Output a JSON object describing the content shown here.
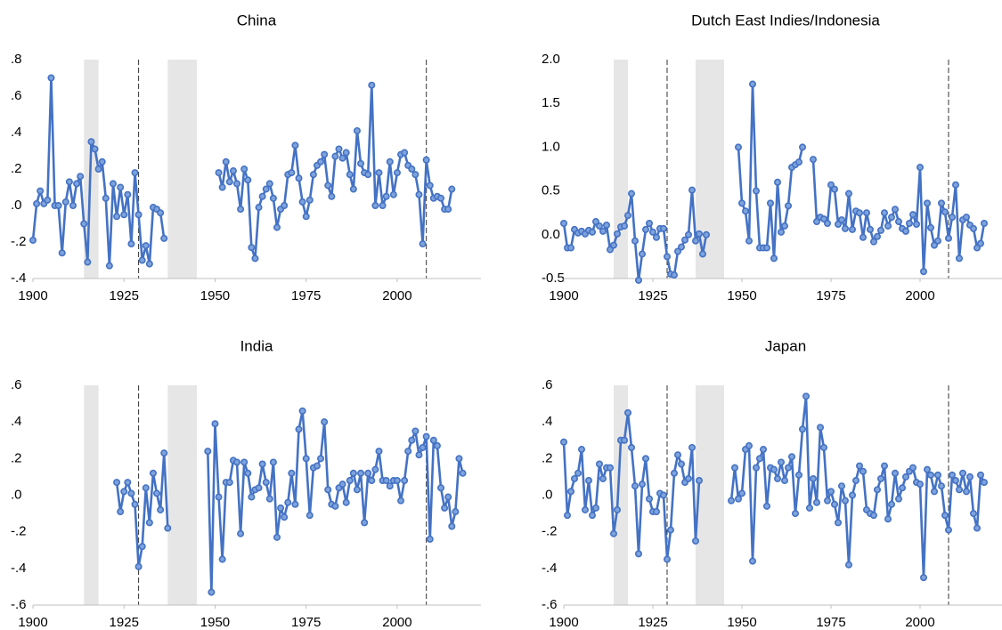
{
  "chart_data": [
    {
      "type": "line",
      "title": "China",
      "color": "#4472c4",
      "x": [
        1900,
        1901,
        1902,
        1903,
        1904,
        1905,
        1906,
        1907,
        1908,
        1909,
        1910,
        1911,
        1912,
        1913,
        1914,
        1915,
        1916,
        1917,
        1918,
        1919,
        1920,
        1921,
        1922,
        1923,
        1924,
        1925,
        1926,
        1927,
        1928,
        1929,
        1930,
        1931,
        1932,
        1933,
        1934,
        1935,
        1936,
        1937,
        1938,
        1939,
        1940,
        1941,
        1942,
        1943,
        1944,
        1945,
        1946,
        1947,
        1948,
        1949,
        1950,
        1951,
        1952,
        1953,
        1954,
        1955,
        1956,
        1957,
        1958,
        1959,
        1960,
        1961,
        1962,
        1963,
        1964,
        1965,
        1966,
        1967,
        1968,
        1969,
        1970,
        1971,
        1972,
        1973,
        1974,
        1975,
        1976,
        1977,
        1978,
        1979,
        1980,
        1981,
        1982,
        1983,
        1984,
        1985,
        1986,
        1987,
        1988,
        1989,
        1990,
        1991,
        1992,
        1993,
        1994,
        1995,
        1996,
        1997,
        1998,
        1999,
        2000,
        2001,
        2002,
        2003,
        2004,
        2005,
        2006,
        2007,
        2008,
        2009,
        2010,
        2011,
        2012,
        2013,
        2014,
        2015,
        2016,
        2017,
        2018
      ],
      "values": [
        -0.19,
        0.01,
        0.08,
        0.01,
        0.03,
        0.7,
        0.0,
        0.0,
        -0.26,
        0.02,
        0.13,
        0.0,
        0.12,
        0.16,
        -0.1,
        -0.31,
        0.35,
        0.31,
        0.2,
        0.24,
        0.04,
        -0.33,
        0.12,
        -0.06,
        0.1,
        -0.05,
        0.06,
        -0.21,
        0.18,
        -0.05,
        -0.3,
        -0.22,
        -0.32,
        -0.01,
        -0.02,
        -0.04,
        -0.18,
        null,
        null,
        null,
        null,
        null,
        null,
        null,
        null,
        null,
        null,
        null,
        null,
        null,
        null,
        0.18,
        0.1,
        0.24,
        0.13,
        0.19,
        0.12,
        -0.02,
        0.2,
        0.14,
        -0.23,
        -0.29,
        -0.01,
        0.05,
        0.09,
        0.12,
        0.04,
        -0.12,
        -0.02,
        0.0,
        0.17,
        0.18,
        0.33,
        0.15,
        0.02,
        -0.06,
        0.03,
        0.17,
        0.22,
        0.24,
        0.28,
        0.11,
        0.05,
        0.27,
        0.31,
        0.26,
        0.29,
        0.17,
        0.09,
        0.41,
        0.23,
        0.18,
        0.17,
        0.66,
        0.0,
        0.18,
        0.0,
        0.05,
        0.24,
        0.06,
        0.18,
        0.28,
        0.29,
        0.22,
        0.2,
        0.17,
        0.06,
        -0.21,
        0.25,
        0.11,
        0.04,
        0.05,
        0.04,
        -0.02,
        -0.02,
        0.09,
        null,
        null,
        null
      ],
      "xlim": [
        1900,
        2023
      ],
      "xticks": [
        1900,
        1925,
        1950,
        1975,
        2000
      ],
      "ylim": [
        -0.4,
        0.8
      ],
      "yticks": [
        {
          "value": 0.8,
          "label": ".8"
        },
        {
          "value": 0.6,
          "label": ".6"
        },
        {
          "value": 0.4,
          "label": ".4"
        },
        {
          "value": 0.2,
          "label": ".2"
        },
        {
          "value": 0,
          "label": ".0"
        },
        {
          "value": -0.2,
          "label": "-.2"
        },
        {
          "value": -0.4,
          "label": "-.4"
        }
      ],
      "shaded_periods": [
        [
          1914,
          1918
        ],
        [
          1937,
          1945
        ]
      ],
      "vlines": [
        1929,
        2008
      ]
    },
    {
      "type": "line",
      "title": "Dutch East Indies/Indonesia",
      "color": "#4472c4",
      "x": [
        1900,
        1901,
        1902,
        1903,
        1904,
        1905,
        1906,
        1907,
        1908,
        1909,
        1910,
        1911,
        1912,
        1913,
        1914,
        1915,
        1916,
        1917,
        1918,
        1919,
        1920,
        1921,
        1922,
        1923,
        1924,
        1925,
        1926,
        1927,
        1928,
        1929,
        1930,
        1931,
        1932,
        1933,
        1934,
        1935,
        1936,
        1937,
        1938,
        1939,
        1940,
        1941,
        1942,
        1943,
        1944,
        1945,
        1946,
        1947,
        1948,
        1949,
        1950,
        1951,
        1952,
        1953,
        1954,
        1955,
        1956,
        1957,
        1958,
        1959,
        1960,
        1961,
        1962,
        1963,
        1964,
        1965,
        1966,
        1967,
        1968,
        1969,
        1970,
        1971,
        1972,
        1973,
        1974,
        1975,
        1976,
        1977,
        1978,
        1979,
        1980,
        1981,
        1982,
        1983,
        1984,
        1985,
        1986,
        1987,
        1988,
        1989,
        1990,
        1991,
        1992,
        1993,
        1994,
        1995,
        1996,
        1997,
        1998,
        1999,
        2000,
        2001,
        2002,
        2003,
        2004,
        2005,
        2006,
        2007,
        2008,
        2009,
        2010,
        2011,
        2012,
        2013,
        2014,
        2015,
        2016,
        2017,
        2018
      ],
      "values": [
        0.13,
        -0.15,
        -0.15,
        0.06,
        0.02,
        0.04,
        0.01,
        0.05,
        0.03,
        0.15,
        0.1,
        0.04,
        0.11,
        -0.17,
        -0.12,
        0.01,
        0.09,
        0.1,
        0.22,
        0.47,
        -0.07,
        -0.52,
        -0.22,
        0.06,
        0.13,
        0.03,
        -0.03,
        0.07,
        0.07,
        -0.25,
        -0.45,
        -0.46,
        -0.19,
        -0.14,
        -0.06,
        0.0,
        0.51,
        -0.07,
        0.01,
        -0.22,
        0.0,
        null,
        null,
        null,
        null,
        null,
        null,
        null,
        null,
        1.0,
        0.36,
        0.27,
        -0.07,
        1.72,
        0.5,
        -0.15,
        -0.15,
        -0.15,
        0.36,
        -0.27,
        0.6,
        0.03,
        0.1,
        0.33,
        0.77,
        0.8,
        0.83,
        1.0,
        null,
        null,
        0.86,
        0.15,
        0.2,
        0.18,
        0.13,
        0.57,
        0.52,
        0.12,
        0.17,
        0.07,
        0.47,
        0.06,
        0.27,
        0.25,
        -0.03,
        0.25,
        0.06,
        -0.08,
        -0.02,
        0.05,
        0.25,
        0.1,
        0.2,
        0.29,
        0.15,
        0.07,
        0.04,
        0.13,
        0.23,
        0.12,
        0.77,
        -0.42,
        0.36,
        0.08,
        -0.12,
        -0.07,
        0.36,
        0.26,
        -0.04,
        0.2,
        0.57,
        -0.27,
        0.17,
        0.2,
        0.11,
        0.07,
        -0.15,
        -0.1,
        0.13
      ],
      "xlim": [
        1900,
        2023
      ],
      "xticks": [
        1900,
        1925,
        1950,
        1975,
        2000
      ],
      "ylim": [
        -0.5,
        2.0
      ],
      "yticks": [
        {
          "value": 2,
          "label": "2.0"
        },
        1.5,
        {
          "value": 1,
          "label": "1.0"
        },
        0.5,
        {
          "value": 0,
          "label": "0.0"
        },
        -0.5
      ],
      "shaded_periods": [
        [
          1914,
          1918
        ],
        [
          1937,
          1945
        ]
      ],
      "vlines": [
        1929,
        2008
      ]
    },
    {
      "type": "line",
      "title": "India",
      "color": "#4472c4",
      "x": [
        1900,
        1901,
        1902,
        1903,
        1904,
        1905,
        1906,
        1907,
        1908,
        1909,
        1910,
        1911,
        1912,
        1913,
        1914,
        1915,
        1916,
        1917,
        1918,
        1919,
        1920,
        1921,
        1922,
        1923,
        1924,
        1925,
        1926,
        1927,
        1928,
        1929,
        1930,
        1931,
        1932,
        1933,
        1934,
        1935,
        1936,
        1937,
        1938,
        1939,
        1940,
        1941,
        1942,
        1943,
        1944,
        1945,
        1946,
        1947,
        1948,
        1949,
        1950,
        1951,
        1952,
        1953,
        1954,
        1955,
        1956,
        1957,
        1958,
        1959,
        1960,
        1961,
        1962,
        1963,
        1964,
        1965,
        1966,
        1967,
        1968,
        1969,
        1970,
        1971,
        1972,
        1973,
        1974,
        1975,
        1976,
        1977,
        1978,
        1979,
        1980,
        1981,
        1982,
        1983,
        1984,
        1985,
        1986,
        1987,
        1988,
        1989,
        1990,
        1991,
        1992,
        1993,
        1994,
        1995,
        1996,
        1997,
        1998,
        1999,
        2000,
        2001,
        2002,
        2003,
        2004,
        2005,
        2006,
        2007,
        2008,
        2009,
        2010,
        2011,
        2012,
        2013,
        2014,
        2015,
        2016,
        2017,
        2018
      ],
      "values": [
        null,
        null,
        null,
        null,
        null,
        null,
        null,
        null,
        null,
        null,
        null,
        null,
        null,
        null,
        null,
        null,
        null,
        null,
        null,
        null,
        null,
        null,
        null,
        0.07,
        -0.09,
        0.02,
        0.07,
        0.01,
        -0.05,
        -0.39,
        -0.28,
        0.04,
        -0.15,
        0.12,
        0.01,
        -0.08,
        0.23,
        -0.18,
        null,
        null,
        null,
        null,
        null,
        null,
        null,
        null,
        null,
        null,
        0.24,
        -0.53,
        0.39,
        -0.01,
        -0.35,
        0.07,
        0.07,
        0.19,
        0.18,
        -0.21,
        0.18,
        0.12,
        -0.01,
        0.03,
        0.04,
        0.17,
        0.07,
        -0.02,
        0.18,
        -0.23,
        -0.07,
        -0.12,
        -0.04,
        0.12,
        -0.05,
        0.36,
        0.46,
        0.2,
        -0.11,
        0.15,
        0.16,
        0.2,
        0.4,
        0.03,
        -0.05,
        -0.06,
        0.04,
        0.06,
        -0.04,
        0.08,
        0.12,
        0.03,
        0.12,
        -0.15,
        0.12,
        0.08,
        0.14,
        0.24,
        0.08,
        0.08,
        0.05,
        0.08,
        0.08,
        -0.03,
        0.08,
        0.24,
        0.3,
        0.35,
        0.22,
        0.26,
        0.32,
        -0.24,
        0.3,
        0.27,
        0.04,
        -0.07,
        -0.01,
        -0.17,
        -0.09,
        0.2,
        0.12
      ],
      "xlim": [
        1900,
        2023
      ],
      "xticks": [
        1900,
        1925,
        1950,
        1975,
        2000
      ],
      "ylim": [
        -0.6,
        0.6
      ],
      "yticks": [
        {
          "value": 0.6,
          "label": ".6"
        },
        {
          "value": 0.4,
          "label": ".4"
        },
        {
          "value": 0.2,
          "label": ".2"
        },
        {
          "value": 0,
          "label": ".0"
        },
        {
          "value": -0.2,
          "label": "-.2"
        },
        {
          "value": -0.4,
          "label": "-.4"
        },
        {
          "value": -0.6,
          "label": "-.6"
        }
      ],
      "shaded_periods": [
        [
          1914,
          1918
        ],
        [
          1937,
          1945
        ]
      ],
      "vlines": [
        1929,
        2008
      ]
    },
    {
      "type": "line",
      "title": "Japan",
      "color": "#4472c4",
      "x": [
        1900,
        1901,
        1902,
        1903,
        1904,
        1905,
        1906,
        1907,
        1908,
        1909,
        1910,
        1911,
        1912,
        1913,
        1914,
        1915,
        1916,
        1917,
        1918,
        1919,
        1920,
        1921,
        1922,
        1923,
        1924,
        1925,
        1926,
        1927,
        1928,
        1929,
        1930,
        1931,
        1932,
        1933,
        1934,
        1935,
        1936,
        1937,
        1938,
        1939,
        1940,
        1941,
        1942,
        1943,
        1944,
        1945,
        1946,
        1947,
        1948,
        1949,
        1950,
        1951,
        1952,
        1953,
        1954,
        1955,
        1956,
        1957,
        1958,
        1959,
        1960,
        1961,
        1962,
        1963,
        1964,
        1965,
        1966,
        1967,
        1968,
        1969,
        1970,
        1971,
        1972,
        1973,
        1974,
        1975,
        1976,
        1977,
        1978,
        1979,
        1980,
        1981,
        1982,
        1983,
        1984,
        1985,
        1986,
        1987,
        1988,
        1989,
        1990,
        1991,
        1992,
        1993,
        1994,
        1995,
        1996,
        1997,
        1998,
        1999,
        2000,
        2001,
        2002,
        2003,
        2004,
        2005,
        2006,
        2007,
        2008,
        2009,
        2010,
        2011,
        2012,
        2013,
        2014,
        2015,
        2016,
        2017,
        2018
      ],
      "values": [
        0.29,
        -0.11,
        0.02,
        0.09,
        0.12,
        0.25,
        -0.08,
        0.08,
        -0.11,
        -0.07,
        0.17,
        0.09,
        0.15,
        0.15,
        -0.21,
        -0.08,
        0.3,
        0.3,
        0.45,
        0.26,
        0.05,
        -0.32,
        0.06,
        0.2,
        -0.02,
        -0.09,
        -0.09,
        0.01,
        0.0,
        -0.35,
        -0.19,
        0.12,
        0.22,
        0.17,
        0.07,
        0.09,
        0.26,
        -0.25,
        0.08,
        null,
        null,
        null,
        null,
        null,
        null,
        null,
        null,
        -0.03,
        0.15,
        -0.02,
        0.01,
        0.25,
        0.27,
        -0.36,
        0.15,
        0.2,
        0.25,
        -0.06,
        0.15,
        0.14,
        0.09,
        0.18,
        0.08,
        0.15,
        0.21,
        -0.1,
        0.11,
        0.36,
        0.54,
        -0.07,
        0.09,
        -0.04,
        0.37,
        0.26,
        -0.03,
        0.02,
        -0.05,
        -0.15,
        0.05,
        -0.03,
        -0.38,
        0.0,
        0.08,
        0.16,
        0.13,
        -0.08,
        -0.1,
        -0.11,
        0.03,
        0.09,
        0.16,
        -0.13,
        -0.05,
        0.12,
        -0.02,
        0.04,
        0.1,
        0.13,
        0.15,
        0.07,
        0.06,
        -0.45,
        0.14,
        0.11,
        0.02,
        0.11,
        0.05,
        -0.11,
        -0.19,
        0.11,
        0.08,
        0.03,
        0.12,
        0.02,
        0.1,
        -0.1,
        -0.18,
        0.11,
        0.07
      ],
      "xlim": [
        1900,
        2023
      ],
      "xticks": [
        1900,
        1925,
        1950,
        1975,
        2000
      ],
      "ylim": [
        -0.6,
        0.6
      ],
      "yticks": [
        {
          "value": 0.6,
          "label": ".6"
        },
        {
          "value": 0.4,
          "label": ".4"
        },
        {
          "value": 0.2,
          "label": ".2"
        },
        {
          "value": 0,
          "label": ".0"
        },
        {
          "value": -0.2,
          "label": "-.2"
        },
        {
          "value": -0.4,
          "label": "-.4"
        },
        {
          "value": -0.6,
          "label": "-.6"
        }
      ],
      "shaded_periods": [
        [
          1914,
          1918
        ],
        [
          1937,
          1945
        ]
      ],
      "vlines": [
        1929,
        2008
      ]
    }
  ]
}
